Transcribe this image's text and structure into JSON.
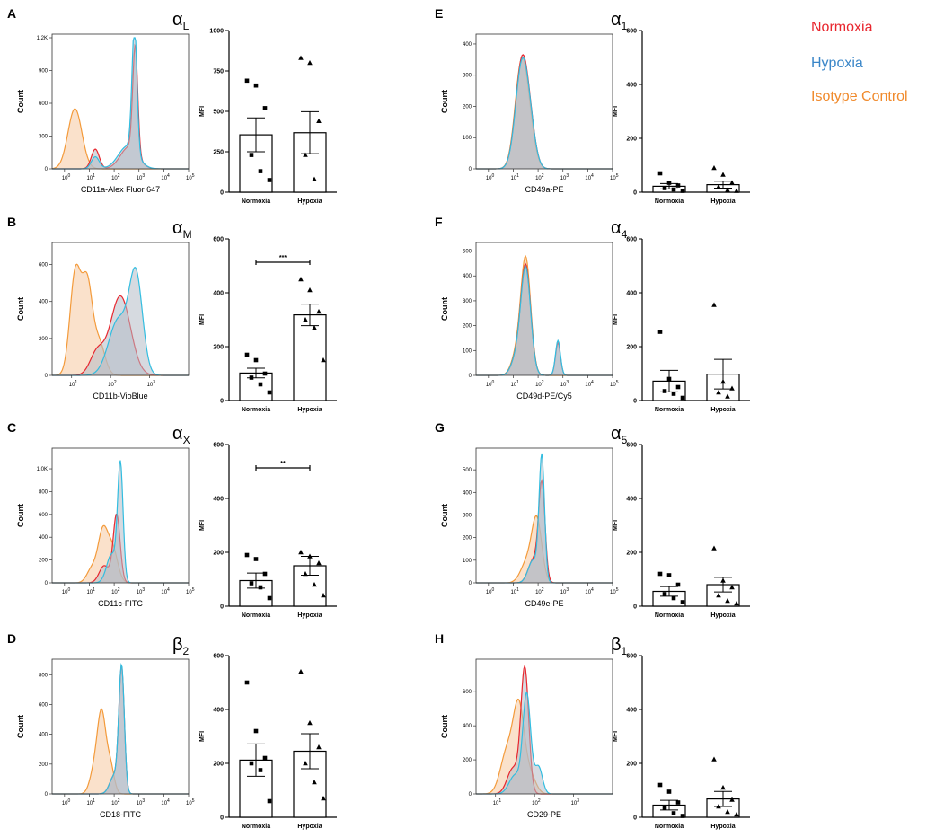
{
  "legend": [
    {
      "label": "Normoxia",
      "color": "#e8262e"
    },
    {
      "label": "Hypoxia",
      "color": "#3a86c8"
    },
    {
      "label": "Isotype Control",
      "color": "#f08a2c"
    }
  ],
  "colors": {
    "normoxia_line": "#e8262e",
    "hypoxia_line": "#31bde0",
    "isotype_line": "#f39a3a",
    "isotype_fill": "#f5c9a0",
    "overlap_fill": "#b5bcc6"
  },
  "chart_data": [
    {
      "type": "area",
      "panel": "A",
      "subunit": "α",
      "subunit_sub": "L",
      "xlabel": "CD11a-Alex Fluor 647",
      "ylabel": "Count",
      "xscale": "log",
      "xlim": [
        0.316,
        100000
      ],
      "x_ticks": [
        "0",
        "1",
        "2",
        "3",
        "4",
        "5"
      ],
      "y_ticks": [
        "0",
        "300",
        "600",
        "900",
        "1.2K"
      ],
      "ylim": [
        0,
        1200
      ],
      "series": [
        {
          "name": "Isotype Control",
          "peaks": [
            {
              "log": 0.42,
              "h": 550,
              "w": 0.28
            }
          ]
        },
        {
          "name": "Normoxia",
          "peaks": [
            {
              "log": 1.24,
              "h": 180,
              "w": 0.16
            },
            {
              "log": 2.85,
              "h": 980,
              "w": 0.1
            },
            {
              "log": 2.6,
              "h": 200,
              "w": 0.35
            }
          ]
        },
        {
          "name": "Hypoxia",
          "peaks": [
            {
              "log": 1.24,
              "h": 110,
              "w": 0.16
            },
            {
              "log": 2.82,
              "h": 1150,
              "w": 0.1
            },
            {
              "log": 2.55,
              "h": 210,
              "w": 0.38
            }
          ]
        }
      ],
      "bar": {
        "type": "bar",
        "categories": [
          "Normoxia",
          "Hypoxia"
        ],
        "values": [
          355,
          368
        ],
        "sem": [
          105,
          130
        ],
        "points": [
          [
            690,
            660,
            520,
            230,
            130,
            75
          ],
          [
            830,
            800,
            440,
            230,
            80
          ]
        ],
        "ylabel": "MFI",
        "y_ticks": [
          "0",
          "250",
          "500",
          "750",
          "1000"
        ],
        "ylim": [
          0,
          1000
        ],
        "significance": ""
      }
    },
    {
      "type": "area",
      "panel": "B",
      "subunit": "α",
      "subunit_sub": "M",
      "xlabel": "CD11b-VioBlue",
      "ylabel": "Count",
      "xscale": "log",
      "xlim": [
        3.16,
        10000
      ],
      "x_ticks": [
        "1",
        "2",
        "3"
      ],
      "y_ticks": [
        "0",
        "200",
        "400",
        "600"
      ],
      "ylim": [
        0,
        700
      ],
      "series": [
        {
          "name": "Isotype Control",
          "peaks": [
            {
              "log": 1.1,
              "h": 560,
              "w": 0.14
            },
            {
              "log": 1.4,
              "h": 470,
              "w": 0.13
            },
            {
              "log": 1.7,
              "h": 180,
              "w": 0.15
            }
          ]
        },
        {
          "name": "Normoxia",
          "peaks": [
            {
              "log": 2.25,
              "h": 430,
              "w": 0.26
            },
            {
              "log": 1.65,
              "h": 120,
              "w": 0.18
            }
          ]
        },
        {
          "name": "Hypoxia",
          "peaks": [
            {
              "log": 2.65,
              "h": 520,
              "w": 0.17
            },
            {
              "log": 2.2,
              "h": 300,
              "w": 0.25
            }
          ]
        }
      ],
      "bar": {
        "type": "bar",
        "categories": [
          "Normoxia",
          "Hypoxia"
        ],
        "values": [
          102,
          318
        ],
        "sem": [
          18,
          40
        ],
        "points": [
          [
            170,
            150,
            100,
            85,
            60,
            30
          ],
          [
            450,
            410,
            330,
            300,
            270,
            150
          ]
        ],
        "ylabel": "MFI",
        "y_ticks": [
          "0",
          "200",
          "400",
          "600"
        ],
        "ylim": [
          0,
          600
        ],
        "significance": "***"
      }
    },
    {
      "type": "area",
      "panel": "C",
      "subunit": "α",
      "subunit_sub": "X",
      "xlabel": "CD11c-FITC",
      "ylabel": "Count",
      "xscale": "log",
      "xlim": [
        0.316,
        100000
      ],
      "x_ticks": [
        "0",
        "1",
        "2",
        "3",
        "4",
        "5"
      ],
      "y_ticks": [
        "0",
        "200",
        "400",
        "600",
        "800",
        "1.0K"
      ],
      "ylim": [
        0,
        1150
      ],
      "series": [
        {
          "name": "Isotype Control",
          "peaks": [
            {
              "log": 1.55,
              "h": 450,
              "w": 0.2
            },
            {
              "log": 1.95,
              "h": 280,
              "w": 0.2
            },
            {
              "log": 1.1,
              "h": 120,
              "w": 0.2
            }
          ]
        },
        {
          "name": "Normoxia",
          "peaks": [
            {
              "log": 2.1,
              "h": 600,
              "w": 0.14
            },
            {
              "log": 1.6,
              "h": 150,
              "w": 0.2
            }
          ]
        },
        {
          "name": "Hypoxia",
          "peaks": [
            {
              "log": 2.25,
              "h": 1020,
              "w": 0.11
            },
            {
              "log": 1.9,
              "h": 250,
              "w": 0.2
            }
          ]
        }
      ],
      "bar": {
        "type": "bar",
        "categories": [
          "Normoxia",
          "Hypoxia"
        ],
        "values": [
          95,
          150
        ],
        "sem": [
          28,
          35
        ],
        "points": [
          [
            190,
            175,
            120,
            85,
            70,
            30
          ],
          [
            200,
            185,
            160,
            120,
            80,
            40
          ]
        ],
        "ylabel": "MFI",
        "y_ticks": [
          "0",
          "200",
          "400",
          "600"
        ],
        "ylim": [
          0,
          600
        ],
        "significance": "**"
      }
    },
    {
      "type": "area",
      "panel": "D",
      "subunit": "β",
      "subunit_sub": "2",
      "xlabel": "CD18-FITC",
      "ylabel": "Count",
      "xscale": "log",
      "xlim": [
        0.316,
        100000
      ],
      "x_ticks": [
        "0",
        "1",
        "2",
        "3",
        "4",
        "5"
      ],
      "y_ticks": [
        "0",
        "200",
        "400",
        "600",
        "800"
      ],
      "ylim": [
        0,
        880
      ],
      "series": [
        {
          "name": "Isotype Control",
          "peaks": [
            {
              "log": 1.5,
              "h": 520,
              "w": 0.17
            },
            {
              "log": 1.85,
              "h": 180,
              "w": 0.15
            },
            {
              "log": 1.2,
              "h": 150,
              "w": 0.18
            }
          ]
        },
        {
          "name": "Normoxia",
          "peaks": [
            {
              "log": 2.3,
              "h": 830,
              "w": 0.11
            },
            {
              "log": 2.0,
              "h": 120,
              "w": 0.18
            }
          ]
        },
        {
          "name": "Hypoxia",
          "peaks": [
            {
              "log": 2.3,
              "h": 840,
              "w": 0.11
            },
            {
              "log": 2.0,
              "h": 120,
              "w": 0.18
            }
          ]
        }
      ],
      "bar": {
        "type": "bar",
        "categories": [
          "Normoxia",
          "Hypoxia"
        ],
        "values": [
          212,
          245
        ],
        "sem": [
          60,
          65
        ],
        "points": [
          [
            500,
            320,
            220,
            200,
            175,
            60
          ],
          [
            540,
            350,
            260,
            200,
            130,
            70
          ]
        ],
        "ylabel": "MFI",
        "y_ticks": [
          "0",
          "200",
          "400",
          "600"
        ],
        "ylim": [
          0,
          600
        ],
        "significance": ""
      }
    },
    {
      "type": "area",
      "panel": "E",
      "subunit": "α",
      "subunit_sub": "1",
      "xlabel": "CD49a-PE",
      "ylabel": "Count",
      "xscale": "log",
      "xlim": [
        0.316,
        100000
      ],
      "x_ticks": [
        "0",
        "1",
        "2",
        "3",
        "4",
        "5"
      ],
      "y_ticks": [
        "0",
        "100",
        "200",
        "300",
        "400"
      ],
      "ylim": [
        0,
        420
      ],
      "series": [
        {
          "name": "Isotype Control",
          "peaks": [
            {
              "log": 1.3,
              "h": 290,
              "w": 0.25
            },
            {
              "log": 1.6,
              "h": 120,
              "w": 0.25
            }
          ]
        },
        {
          "name": "Normoxia",
          "peaks": [
            {
              "log": 1.35,
              "h": 340,
              "w": 0.26
            },
            {
              "log": 1.7,
              "h": 80,
              "w": 0.22
            }
          ]
        },
        {
          "name": "Hypoxia",
          "peaks": [
            {
              "log": 1.35,
              "h": 330,
              "w": 0.26
            },
            {
              "log": 1.7,
              "h": 80,
              "w": 0.22
            }
          ]
        }
      ],
      "bar": {
        "type": "bar",
        "categories": [
          "Normoxia",
          "Hypoxia"
        ],
        "values": [
          22,
          28
        ],
        "sem": [
          10,
          13
        ],
        "points": [
          [
            70,
            35,
            25,
            15,
            10,
            5
          ],
          [
            90,
            65,
            35,
            20,
            8,
            5
          ]
        ],
        "ylabel": "MFI",
        "y_ticks": [
          "0",
          "200",
          "400",
          "600"
        ],
        "ylim": [
          0,
          600
        ],
        "significance": ""
      }
    },
    {
      "type": "area",
      "panel": "F",
      "subunit": "α",
      "subunit_sub": "4",
      "xlabel": "CD49d-PE/Cy5",
      "ylabel": "Count",
      "xscale": "log",
      "xlim": [
        0.316,
        100000
      ],
      "x_ticks": [
        "0",
        "1",
        "2",
        "3",
        "4",
        "5"
      ],
      "y_ticks": [
        "0",
        "100",
        "200",
        "300",
        "400",
        "500"
      ],
      "ylim": [
        0,
        520
      ],
      "series": [
        {
          "name": "Isotype Control",
          "peaks": [
            {
              "log": 1.5,
              "h": 470,
              "w": 0.2
            },
            {
              "log": 1.1,
              "h": 70,
              "w": 0.2
            }
          ]
        },
        {
          "name": "Normoxia",
          "peaks": [
            {
              "log": 1.5,
              "h": 440,
              "w": 0.2
            },
            {
              "log": 2.8,
              "h": 130,
              "w": 0.1
            },
            {
              "log": 1.1,
              "h": 60,
              "w": 0.2
            }
          ]
        },
        {
          "name": "Hypoxia",
          "peaks": [
            {
              "log": 1.5,
              "h": 430,
              "w": 0.2
            },
            {
              "log": 2.8,
              "h": 140,
              "w": 0.1
            },
            {
              "log": 1.1,
              "h": 60,
              "w": 0.2
            }
          ]
        }
      ],
      "bar": {
        "type": "bar",
        "categories": [
          "Normoxia",
          "Hypoxia"
        ],
        "values": [
          72,
          98
        ],
        "sem": [
          40,
          55
        ],
        "points": [
          [
            255,
            80,
            50,
            35,
            25,
            10
          ],
          [
            355,
            70,
            45,
            30,
            15
          ]
        ],
        "ylabel": "MFI",
        "y_ticks": [
          "0",
          "200",
          "400",
          "600"
        ],
        "ylim": [
          0,
          600
        ],
        "significance": ""
      }
    },
    {
      "type": "area",
      "panel": "G",
      "subunit": "α",
      "subunit_sub": "5",
      "xlabel": "CD49e-PE",
      "ylabel": "Count",
      "xscale": "log",
      "xlim": [
        0.316,
        100000
      ],
      "x_ticks": [
        "0",
        "1",
        "2",
        "3",
        "4",
        "5"
      ],
      "y_ticks": [
        "0",
        "100",
        "200",
        "300",
        "400",
        "500"
      ],
      "ylim": [
        0,
        580
      ],
      "series": [
        {
          "name": "Isotype Control",
          "peaks": [
            {
              "log": 1.95,
              "h": 270,
              "w": 0.2
            },
            {
              "log": 1.55,
              "h": 90,
              "w": 0.25
            }
          ]
        },
        {
          "name": "Normoxia",
          "peaks": [
            {
              "log": 2.15,
              "h": 430,
              "w": 0.13
            },
            {
              "log": 1.8,
              "h": 100,
              "w": 0.2
            }
          ]
        },
        {
          "name": "Hypoxia",
          "peaks": [
            {
              "log": 2.15,
              "h": 550,
              "w": 0.11
            },
            {
              "log": 1.8,
              "h": 100,
              "w": 0.2
            }
          ]
        }
      ],
      "bar": {
        "type": "bar",
        "categories": [
          "Normoxia",
          "Hypoxia"
        ],
        "values": [
          55,
          80
        ],
        "sem": [
          18,
          27
        ],
        "points": [
          [
            120,
            115,
            80,
            45,
            30,
            15
          ],
          [
            215,
            95,
            70,
            40,
            20,
            10
          ]
        ],
        "ylabel": "MFI",
        "y_ticks": [
          "0",
          "200",
          "400",
          "600"
        ],
        "ylim": [
          0,
          600
        ],
        "significance": ""
      }
    },
    {
      "type": "area",
      "panel": "H",
      "subunit": "β",
      "subunit_sub": "1",
      "xlabel": "CD29-PE",
      "ylabel": "Count",
      "xscale": "log",
      "xlim": [
        3.16,
        10000
      ],
      "x_ticks": [
        "1",
        "2",
        "3"
      ],
      "y_ticks": [
        "0",
        "200",
        "400",
        "600"
      ],
      "ylim": [
        0,
        770
      ],
      "series": [
        {
          "name": "Isotype Control",
          "peaks": [
            {
              "log": 1.6,
              "h": 490,
              "w": 0.14
            },
            {
              "log": 1.3,
              "h": 250,
              "w": 0.17
            },
            {
              "log": 1.9,
              "h": 100,
              "w": 0.14
            }
          ]
        },
        {
          "name": "Normoxia",
          "peaks": [
            {
              "log": 1.75,
              "h": 730,
              "w": 0.1
            },
            {
              "log": 1.45,
              "h": 150,
              "w": 0.15
            }
          ]
        },
        {
          "name": "Hypoxia",
          "peaks": [
            {
              "log": 1.8,
              "h": 580,
              "w": 0.1
            },
            {
              "log": 2.1,
              "h": 160,
              "w": 0.1
            },
            {
              "log": 1.5,
              "h": 110,
              "w": 0.15
            }
          ]
        }
      ],
      "bar": {
        "type": "bar",
        "categories": [
          "Normoxia",
          "Hypoxia"
        ],
        "values": [
          45,
          68
        ],
        "sem": [
          18,
          28
        ],
        "points": [
          [
            120,
            95,
            55,
            35,
            15,
            5
          ],
          [
            215,
            110,
            65,
            40,
            20,
            10
          ]
        ],
        "ylabel": "MFI",
        "y_ticks": [
          "0",
          "200",
          "400",
          "600"
        ],
        "ylim": [
          0,
          600
        ],
        "significance": ""
      }
    }
  ]
}
